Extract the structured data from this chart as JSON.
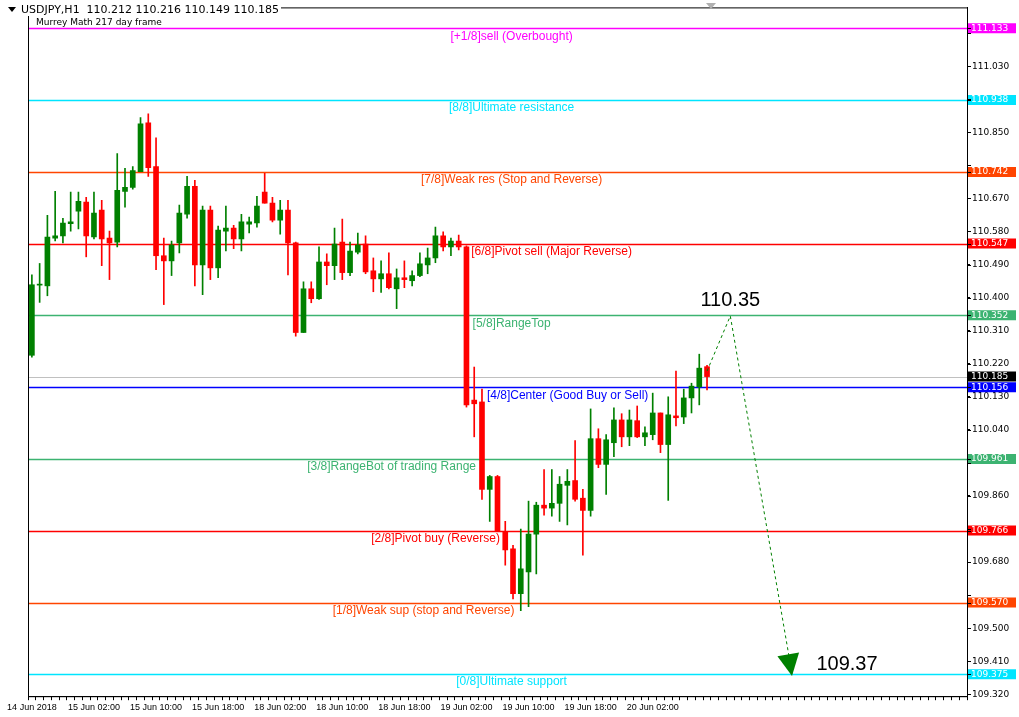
{
  "chart_data": {
    "type": "candlestick",
    "title": "USDJPY,H1  110.212 110.216 110.149 110.185",
    "subtitle": "Murrey Math 217 day frame",
    "categories": [
      "14 Jun 2018",
      null,
      null,
      null,
      null,
      null,
      null,
      null,
      "15 Jun 02:00",
      null,
      null,
      null,
      null,
      null,
      null,
      null,
      "15 Jun 10:00",
      null,
      null,
      null,
      null,
      null,
      null,
      null,
      "15 Jun 18:00",
      null,
      null,
      null,
      null,
      null,
      null,
      null,
      "18 Jun 02:00",
      null,
      null,
      null,
      null,
      null,
      null,
      null,
      "18 Jun 10:00",
      null,
      null,
      null,
      null,
      null,
      null,
      null,
      "18 Jun 18:00",
      null,
      null,
      null,
      null,
      null,
      null,
      null,
      "19 Jun 02:00",
      null,
      null,
      null,
      null,
      null,
      null,
      null,
      "19 Jun 10:00",
      null,
      null,
      null,
      null,
      null,
      null,
      null,
      "19 Jun 18:00",
      null,
      null,
      null,
      null,
      null,
      null,
      null,
      "20 Jun 02:00",
      null,
      null,
      null,
      null,
      null,
      null,
      null,
      null,
      null,
      null,
      null,
      null,
      null,
      null,
      null,
      null,
      null,
      null,
      null,
      null,
      null,
      null,
      null,
      null,
      null,
      null,
      null,
      null,
      null,
      null,
      null,
      null,
      null,
      null,
      null,
      null,
      null,
      null,
      null,
      null
    ],
    "ohlc": [
      [
        110.243,
        110.462,
        110.238,
        110.435
      ],
      [
        110.434,
        110.493,
        110.387,
        110.436
      ],
      [
        110.432,
        110.624,
        110.405,
        110.565
      ],
      [
        110.562,
        110.689,
        110.554,
        110.568
      ],
      [
        110.568,
        110.616,
        110.549,
        110.603
      ],
      [
        110.601,
        110.687,
        110.581,
        110.606
      ],
      [
        110.635,
        110.687,
        110.587,
        110.662
      ],
      [
        110.66,
        110.673,
        110.511,
        110.568
      ],
      [
        110.565,
        110.687,
        110.56,
        110.63
      ],
      [
        110.638,
        110.665,
        110.487,
        110.56
      ],
      [
        110.562,
        110.581,
        110.449,
        110.549
      ],
      [
        110.551,
        110.792,
        110.538,
        110.692
      ],
      [
        110.689,
        110.752,
        110.646,
        110.7
      ],
      [
        110.7,
        110.757,
        110.695,
        110.746
      ],
      [
        110.743,
        110.89,
        110.743,
        110.873
      ],
      [
        110.876,
        110.9,
        110.73,
        110.754
      ],
      [
        110.757,
        110.835,
        110.476,
        110.514
      ],
      [
        110.514,
        110.562,
        110.381,
        110.5
      ],
      [
        110.5,
        110.554,
        110.46,
        110.543
      ],
      [
        110.549,
        110.652,
        110.522,
        110.63
      ],
      [
        110.627,
        110.73,
        110.616,
        110.703
      ],
      [
        110.703,
        110.719,
        110.432,
        110.489
      ],
      [
        110.489,
        110.649,
        110.408,
        110.638
      ],
      [
        110.638,
        110.649,
        110.449,
        110.481
      ],
      [
        110.481,
        110.595,
        110.454,
        110.584
      ],
      [
        110.581,
        110.649,
        110.527,
        110.589
      ],
      [
        110.589,
        110.597,
        110.533,
        110.56
      ],
      [
        110.56,
        110.627,
        110.527,
        110.606
      ],
      [
        110.6,
        110.619,
        110.576,
        110.606
      ],
      [
        110.603,
        110.676,
        110.592,
        110.649
      ],
      [
        110.687,
        110.738,
        110.657,
        110.657
      ],
      [
        110.657,
        110.673,
        110.606,
        110.611
      ],
      [
        110.611,
        110.665,
        110.573,
        110.638
      ],
      [
        110.638,
        110.665,
        110.462,
        110.549
      ],
      [
        110.549,
        110.551,
        110.295,
        110.305
      ],
      [
        110.305,
        110.443,
        110.305,
        110.424
      ],
      [
        110.424,
        110.443,
        110.386,
        110.397
      ],
      [
        110.397,
        110.538,
        110.395,
        110.497
      ],
      [
        110.497,
        110.519,
        110.435,
        110.487
      ],
      [
        110.487,
        110.589,
        110.449,
        110.546
      ],
      [
        110.551,
        110.614,
        110.449,
        110.468
      ],
      [
        110.468,
        110.551,
        110.46,
        110.527
      ],
      [
        110.524,
        110.576,
        110.519,
        110.543
      ],
      [
        110.546,
        110.568,
        110.465,
        110.47
      ],
      [
        110.473,
        110.508,
        110.416,
        110.451
      ],
      [
        110.451,
        110.5,
        110.414,
        110.465
      ],
      [
        110.465,
        110.522,
        110.424,
        110.427
      ],
      [
        110.424,
        110.478,
        110.37,
        110.454
      ],
      [
        110.454,
        110.5,
        110.427,
        110.449
      ],
      [
        110.446,
        110.473,
        110.432,
        110.46
      ],
      [
        110.46,
        110.522,
        110.457,
        110.492
      ],
      [
        110.489,
        110.535,
        110.465,
        110.508
      ],
      [
        110.508,
        110.592,
        110.495,
        110.568
      ],
      [
        110.568,
        110.579,
        110.527,
        110.538
      ],
      [
        110.538,
        110.562,
        110.514,
        110.554
      ],
      [
        110.554,
        110.57,
        110.53,
        110.538
      ],
      [
        110.538,
        110.541,
        110.102,
        110.108
      ],
      [
        110.121,
        110.211,
        110.021,
        110.111
      ],
      [
        110.116,
        110.151,
        109.851,
        109.878
      ],
      [
        109.878,
        109.916,
        109.791,
        109.913
      ],
      [
        109.913,
        109.916,
        109.764,
        109.764
      ],
      [
        109.762,
        109.791,
        109.672,
        109.713
      ],
      [
        109.716,
        109.726,
        109.58,
        109.594
      ],
      [
        109.594,
        109.77,
        109.548,
        109.662
      ],
      [
        109.653,
        109.846,
        109.559,
        109.756
      ],
      [
        109.756,
        109.843,
        109.648,
        109.835
      ],
      [
        109.835,
        109.932,
        109.808,
        109.827
      ],
      [
        109.827,
        109.932,
        109.805,
        109.84
      ],
      [
        109.84,
        109.913,
        109.791,
        109.892
      ],
      [
        109.889,
        109.932,
        109.781,
        109.9
      ],
      [
        109.902,
        110.011,
        109.846,
        109.851
      ],
      [
        109.854,
        109.878,
        109.699,
        109.821
      ],
      [
        109.821,
        110.097,
        109.805,
        110.016
      ],
      [
        110.016,
        110.043,
        109.937,
        109.946
      ],
      [
        109.946,
        110.027,
        109.864,
        110.013
      ],
      [
        110.005,
        110.1,
        109.967,
        110.067
      ],
      [
        110.067,
        110.084,
        109.994,
        110.021
      ],
      [
        110.021,
        110.094,
        109.997,
        110.067
      ],
      [
        110.065,
        110.105,
        110.019,
        110.021
      ],
      [
        110.021,
        110.048,
        109.997,
        110.032
      ],
      [
        110.027,
        110.14,
        110.013,
        110.086
      ],
      [
        110.086,
        110.086,
        109.978,
        110.0
      ],
      [
        110.0,
        110.13,
        109.848,
        110.081
      ],
      [
        110.078,
        110.2,
        110.051,
        110.073
      ],
      [
        110.075,
        110.151,
        110.057,
        110.127
      ],
      [
        110.127,
        110.167,
        110.086,
        110.159
      ],
      [
        110.157,
        110.246,
        110.108,
        110.208
      ],
      [
        110.212,
        110.216,
        110.149,
        110.185
      ],
      null,
      null,
      null,
      null,
      null,
      null,
      null,
      null,
      null,
      null,
      null,
      null,
      null,
      null,
      null,
      null,
      null,
      null,
      null,
      null,
      null,
      null,
      null,
      null,
      null,
      null,
      null,
      null,
      null,
      null,
      null,
      null,
      null
    ],
    "colors": [
      "#008000",
      "#008000",
      "#008000",
      "#008000",
      "#008000",
      "#008000",
      "#008000",
      "#ff0000",
      "#008000",
      "#ff0000",
      "#ff0000",
      "#008000",
      "#008000",
      "#008000",
      "#008000",
      "#ff0000",
      "#ff0000",
      "#ff0000",
      "#008000",
      "#008000",
      "#008000",
      "#ff0000",
      "#008000",
      "#ff0000",
      "#008000",
      "#008000",
      "#ff0000",
      "#008000",
      "#008000",
      "#008000",
      "#ff0000",
      "#ff0000",
      "#008000",
      "#ff0000",
      "#ff0000",
      "#008000",
      "#ff0000",
      "#008000",
      "#ff0000",
      "#008000",
      "#ff0000",
      "#008000",
      "#008000",
      "#ff0000",
      "#ff0000",
      "#008000",
      "#ff0000",
      "#008000",
      "#ff0000",
      "#008000",
      "#008000",
      "#008000",
      "#008000",
      "#ff0000",
      "#008000",
      "#ff0000",
      "#ff0000",
      "#ff0000",
      "#ff0000",
      "#008000",
      "#ff0000",
      "#ff0000",
      "#ff0000",
      "#008000",
      "#008000",
      "#008000",
      "#ff0000",
      "#008000",
      "#008000",
      "#008000",
      "#ff0000",
      "#ff0000",
      "#008000",
      "#ff0000",
      "#008000",
      "#008000",
      "#ff0000",
      "#008000",
      "#ff0000",
      "#008000",
      "#008000",
      "#ff0000",
      "#008000",
      "#ff0000",
      "#008000",
      "#008000",
      "#008000",
      "#ff0000",
      null,
      null,
      null,
      null,
      null,
      null,
      null,
      null,
      null,
      null,
      null,
      null,
      null,
      null,
      null,
      null,
      null,
      null,
      null,
      null,
      null,
      null,
      null,
      null,
      null,
      null,
      null,
      null,
      null,
      null,
      null,
      null,
      null
    ],
    "series": [
      {
        "type": "line",
        "color": "#008000",
        "line_style": "dashed",
        "marker": "none",
        "values": [
          null,
          null,
          null,
          null,
          null,
          null,
          null,
          null,
          null,
          null,
          null,
          null,
          null,
          null,
          null,
          null,
          null,
          null,
          null,
          null,
          null,
          null,
          null,
          null,
          null,
          null,
          null,
          null,
          null,
          null,
          null,
          null,
          null,
          null,
          null,
          null,
          null,
          null,
          null,
          null,
          null,
          null,
          null,
          null,
          null,
          null,
          null,
          null,
          null,
          null,
          null,
          null,
          null,
          null,
          null,
          null,
          null,
          null,
          null,
          null,
          null,
          null,
          null,
          null,
          null,
          null,
          null,
          null,
          null,
          null,
          null,
          null,
          null,
          null,
          null,
          null,
          null,
          null,
          null,
          null,
          null,
          null,
          null,
          null,
          null,
          null,
          null,
          110.2,
          null,
          null,
          110.35,
          null,
          null,
          null,
          null,
          null,
          null,
          null,
          109.37,
          null,
          null,
          null,
          null,
          null,
          null,
          null,
          null,
          null,
          null,
          null,
          null,
          null,
          null,
          null,
          null,
          null,
          null,
          null,
          null,
          null,
          null
        ]
      }
    ],
    "ylim": [
      109.315,
      111.19
    ],
    "yticks": [
      {
        "value": 109.32,
        "label": "109.320"
      },
      {
        "value": 109.375,
        "label": "109.375"
      },
      {
        "value": 109.41,
        "label": "109.410"
      },
      {
        "value": 109.5,
        "label": "109.500"
      },
      {
        "value": 109.57,
        "label": "109.570"
      },
      {
        "value": 109.59,
        "label": null
      },
      {
        "value": 109.68,
        "label": "109.680"
      },
      {
        "value": 109.766,
        "label": "109.766"
      },
      {
        "value": 109.77,
        "label": null
      },
      {
        "value": 109.86,
        "label": "109.860"
      },
      {
        "value": 109.95,
        "label": null
      },
      {
        "value": 109.961,
        "label": "109.961"
      },
      {
        "value": 110.04,
        "label": "110.040"
      },
      {
        "value": 110.13,
        "label": "110.130"
      },
      {
        "value": 110.156,
        "label": "110.156"
      },
      {
        "value": 110.185,
        "label": "110.185"
      },
      {
        "value": 110.22,
        "label": "110.220"
      },
      {
        "value": 110.31,
        "label": "110.310"
      },
      {
        "value": 110.352,
        "label": "110.352"
      },
      {
        "value": 110.4,
        "label": "110.400"
      },
      {
        "value": 110.49,
        "label": "110.490"
      },
      {
        "value": 110.547,
        "label": "110.547"
      },
      {
        "value": 110.58,
        "label": "110.580"
      },
      {
        "value": 110.67,
        "label": "110.670"
      },
      {
        "value": 110.742,
        "label": "110.742"
      },
      {
        "value": 110.76,
        "label": null
      },
      {
        "value": 110.85,
        "label": "110.850"
      },
      {
        "value": 110.938,
        "label": "110.938"
      },
      {
        "value": 110.94,
        "label": null
      },
      {
        "value": 111.03,
        "label": "111.030"
      },
      {
        "value": 111.12,
        "label": null
      },
      {
        "value": 111.133,
        "label": "111.133"
      }
    ],
    "ref_lines": [
      {
        "axis": "y",
        "value": 111.133,
        "label": "[+1/8]sell (Overbought)",
        "color": "#ff00ff"
      },
      {
        "axis": "y",
        "value": 110.938,
        "label": "[8/8]Ultimate resistance",
        "color": "#00e5ff"
      },
      {
        "axis": "y",
        "value": 110.742,
        "label": "[7/8]Weak res (Stop and Reverse)",
        "color": "#ff4500"
      },
      {
        "axis": "y",
        "value": 110.547,
        "label": "[6/8]Pivot sell (Major Reverse)",
        "color": "#ff0000"
      },
      {
        "axis": "y",
        "value": 110.352,
        "label": "[5/8]RangeTop",
        "color": "#3cb371"
      },
      {
        "axis": "y",
        "value": 110.185,
        "color": "#c0c0c0"
      },
      {
        "axis": "y",
        "value": 110.156,
        "label": "[4/8]Center (Good Buy or Sell)",
        "color": "#0000ff"
      },
      {
        "axis": "y",
        "value": 109.961,
        "label": "[3/8]RangeBot of trading Range",
        "color": "#3cb371"
      },
      {
        "axis": "y",
        "value": 109.766,
        "label": "[2/8]Pivot buy (Reverse)",
        "color": "#ff0000"
      },
      {
        "axis": "y",
        "value": 109.57,
        "label": "[1/8]Weak sup (stop and Reverse)",
        "color": "#ff4500"
      },
      {
        "axis": "y",
        "value": 109.375,
        "label": "[0/8]Ultimate support",
        "color": "#00e5ff"
      }
    ],
    "annotations": [
      {
        "text": "110.35",
        "y": 110.35
      },
      {
        "text": "109.37",
        "y": 109.37
      }
    ],
    "legend": false,
    "grid": false
  }
}
